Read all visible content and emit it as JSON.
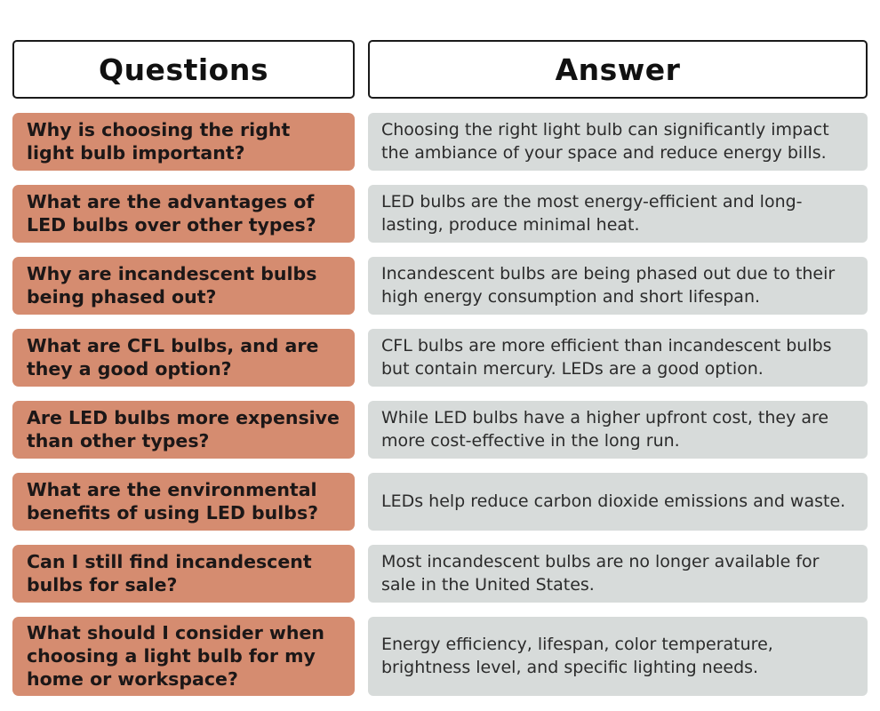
{
  "colors": {
    "question_bg": "#D58C70",
    "answer_bg": "#D7DBDA",
    "header_border": "#1A1A1A",
    "question_text": "#1C1717",
    "answer_text": "#2B2B2B"
  },
  "table": {
    "headers": {
      "questions": "Questions",
      "answer": "Answer"
    },
    "rows": [
      {
        "question": "Why is choosing the right light bulb important?",
        "answer": "Choosing the right light bulb can significantly impact the ambiance of your space and reduce energy bills."
      },
      {
        "question": "What are the advantages of LED bulbs over other types?",
        "answer": "LED bulbs are the most energy-efficient and long-lasting, produce minimal heat."
      },
      {
        "question": "Why are incandescent bulbs being phased out?",
        "answer": "Incandescent bulbs are being phased out due to their high energy consumption and short lifespan."
      },
      {
        "question": "What are CFL bulbs, and are they a good option?",
        "answer": "CFL bulbs are more efficient than incandescent bulbs but contain mercury. LEDs are a good option."
      },
      {
        "question": "Are LED bulbs more expensive than other types?",
        "answer": "While LED bulbs have a higher upfront cost, they are more cost-effective in the long run."
      },
      {
        "question": "What are the environmental benefits of using LED bulbs?",
        "answer": "LEDs help reduce carbon dioxide emissions and waste."
      },
      {
        "question": "Can I still find incandescent bulbs for sale?",
        "answer": "Most incandescent bulbs are no longer available for sale in the United States."
      },
      {
        "question": "What should I consider when choosing a light bulb for my home or workspace?",
        "answer": "Energy efficiency, lifespan, color temperature, brightness level, and specific lighting needs."
      }
    ]
  }
}
